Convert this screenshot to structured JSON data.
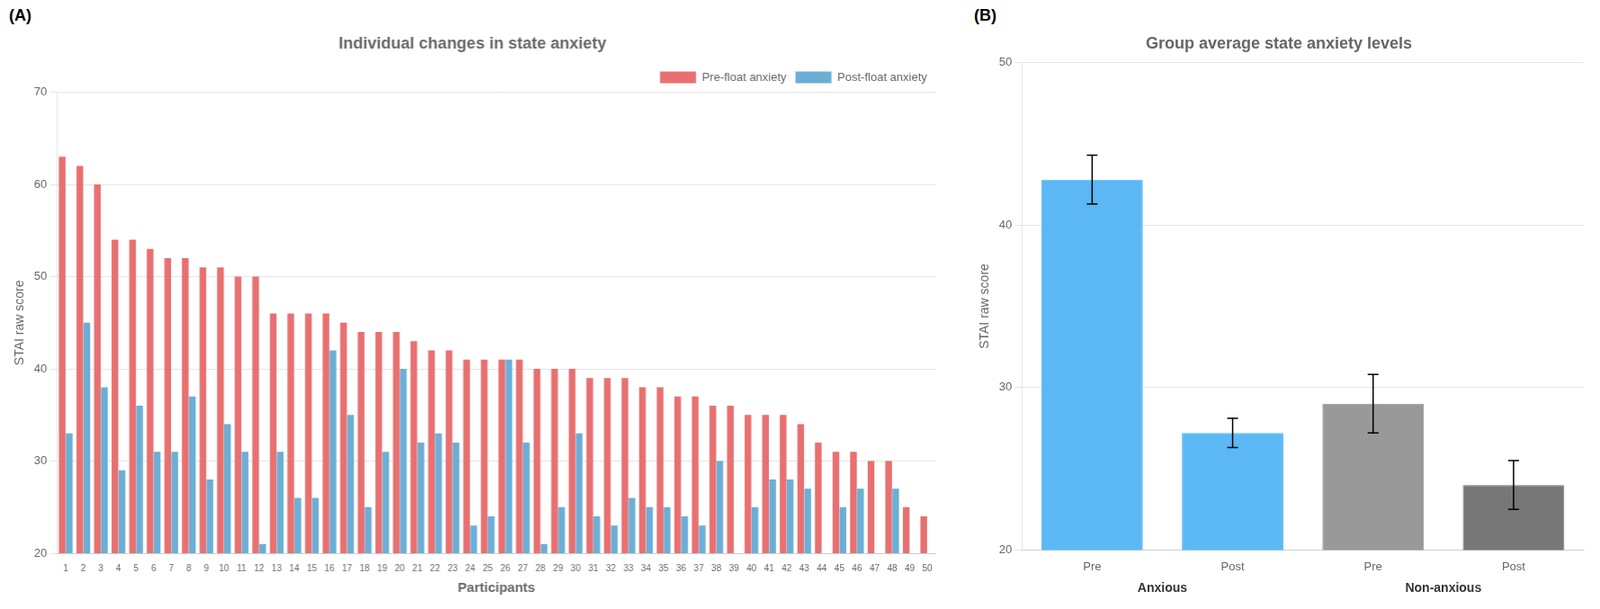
{
  "chart_data": [
    {
      "type": "bar",
      "title": "Individual changes in state anxiety",
      "x_label": "Participants",
      "y_label": "STAI raw score",
      "annotations": [
        "(A)"
      ],
      "categories": [
        "1",
        "2",
        "3",
        "4",
        "5",
        "6",
        "7",
        "8",
        "9",
        "10",
        "11",
        "12",
        "13",
        "14",
        "15",
        "16",
        "17",
        "18",
        "19",
        "20",
        "21",
        "22",
        "23",
        "24",
        "25",
        "26",
        "27",
        "28",
        "29",
        "30",
        "31",
        "32",
        "33",
        "34",
        "35",
        "36",
        "37",
        "38",
        "39",
        "40",
        "41",
        "42",
        "43",
        "44",
        "45",
        "46",
        "47",
        "48",
        "49",
        "50"
      ],
      "series": [
        {
          "name": "Pre-float anxiety",
          "color": "#E87070",
          "values": [
            63,
            62,
            60,
            54,
            54,
            53,
            52,
            52,
            51,
            51,
            50,
            50,
            46,
            46,
            46,
            46,
            45,
            44,
            44,
            44,
            43,
            42,
            42,
            41,
            41,
            41,
            41,
            40,
            40,
            40,
            39,
            39,
            39,
            38,
            38,
            37,
            37,
            36,
            36,
            35,
            35,
            35,
            34,
            32,
            31,
            31,
            30,
            30,
            25,
            24
          ]
        },
        {
          "name": "Post-float anxiety",
          "color": "#6BAED6",
          "values": [
            33,
            45,
            38,
            29,
            36,
            31,
            31,
            37,
            28,
            34,
            31,
            21,
            31,
            26,
            26,
            42,
            35,
            25,
            31,
            40,
            32,
            33,
            32,
            23,
            24,
            41,
            32,
            21,
            25,
            33,
            24,
            23,
            26,
            25,
            25,
            24,
            23,
            30,
            20,
            25,
            28,
            28,
            27,
            20,
            25,
            27,
            20,
            27,
            20,
            20
          ]
        }
      ],
      "ylim": [
        20,
        70
      ],
      "yticks": [
        20,
        30,
        40,
        50,
        60,
        70
      ],
      "grid": true,
      "legend": "upper right"
    },
    {
      "type": "bar",
      "title": "Group average state anxiety levels",
      "y_label": "STAI raw score",
      "annotations": [
        "(B)"
      ],
      "categories": [
        "Pre",
        "Post",
        "Pre",
        "Post"
      ],
      "groups": [
        "Anxious",
        "Anxious",
        "Non-anxious",
        "Non-anxious"
      ],
      "values": [
        42.8,
        27.2,
        29.0,
        24.0
      ],
      "errors": [
        1.5,
        0.9,
        1.8,
        1.5
      ],
      "colors": [
        "#5BB8F5",
        "#5BB8F5",
        "#999999",
        "#777777"
      ],
      "ylim": [
        20,
        50
      ],
      "yticks": [
        20,
        30,
        40,
        50
      ],
      "grid": true
    }
  ]
}
